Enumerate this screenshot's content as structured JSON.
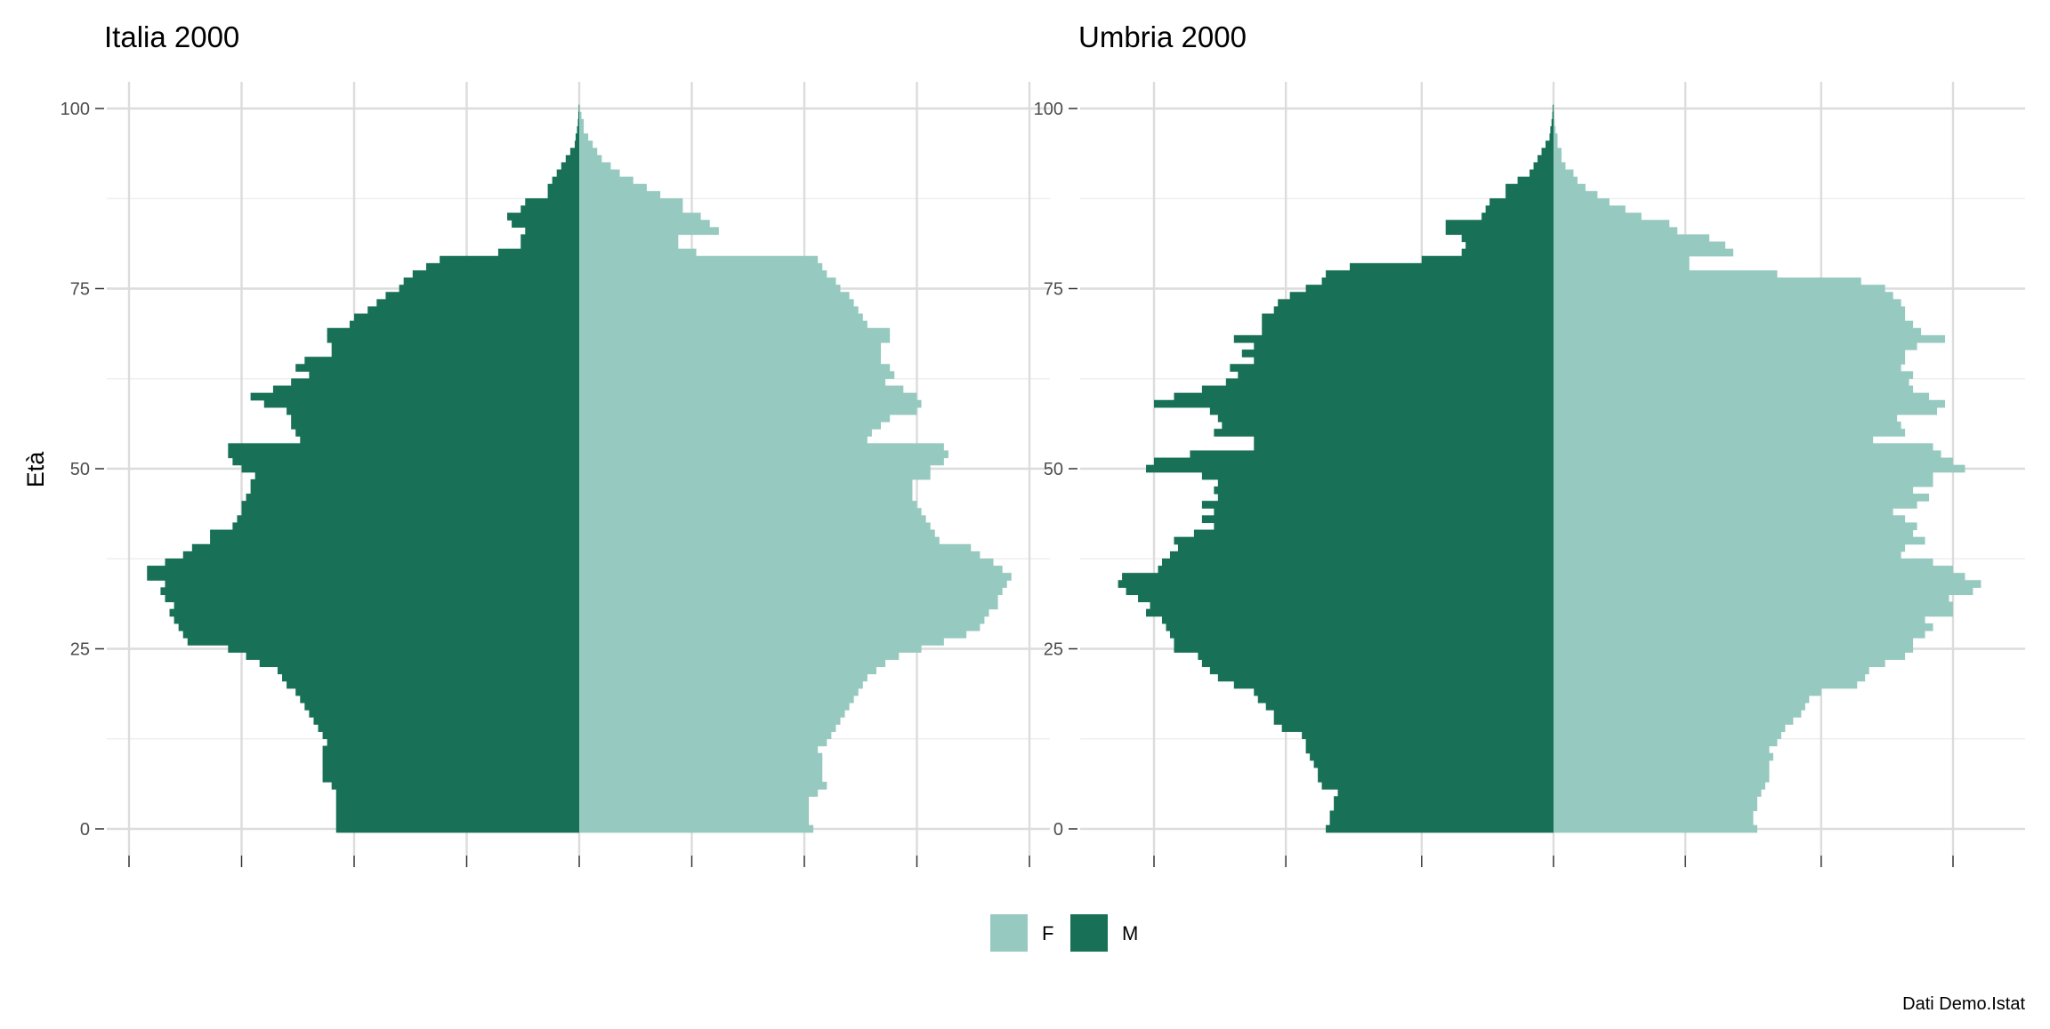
{
  "caption": "Dati Demo.Istat",
  "colors": {
    "F": "#96c9bf",
    "M": "#187157"
  },
  "chart_data": [
    {
      "type": "bar",
      "orientation": "horizontal-pyramid",
      "title": "Italia 2000",
      "ylabel": "Età",
      "xlabel": "",
      "ylim": [
        0,
        100
      ],
      "yticks": [
        0,
        25,
        50,
        75,
        100
      ],
      "grid": true,
      "legend": "bottom",
      "x_tick_labels": [],
      "x_gridlines_relative": [
        -1.0,
        -0.75,
        -0.5,
        -0.25,
        0,
        0.25,
        0.5,
        0.75,
        1.0
      ],
      "ages": [
        0,
        1,
        2,
        3,
        4,
        5,
        6,
        7,
        8,
        9,
        10,
        11,
        12,
        13,
        14,
        15,
        16,
        17,
        18,
        19,
        20,
        21,
        22,
        23,
        24,
        25,
        26,
        27,
        28,
        29,
        30,
        31,
        32,
        33,
        34,
        35,
        36,
        37,
        38,
        39,
        40,
        41,
        42,
        43,
        44,
        45,
        46,
        47,
        48,
        49,
        50,
        51,
        52,
        53,
        54,
        55,
        56,
        57,
        58,
        59,
        60,
        61,
        62,
        63,
        64,
        65,
        66,
        67,
        68,
        69,
        70,
        71,
        72,
        73,
        74,
        75,
        76,
        77,
        78,
        79,
        80,
        81,
        82,
        83,
        84,
        85,
        86,
        87,
        88,
        89,
        90,
        91,
        92,
        93,
        94,
        95,
        96,
        97,
        98,
        99,
        100
      ],
      "series": [
        {
          "name": "F",
          "values_relative": [
            0.52,
            0.51,
            0.51,
            0.51,
            0.51,
            0.53,
            0.55,
            0.54,
            0.54,
            0.54,
            0.54,
            0.53,
            0.55,
            0.56,
            0.57,
            0.58,
            0.59,
            0.6,
            0.61,
            0.62,
            0.63,
            0.64,
            0.66,
            0.68,
            0.71,
            0.76,
            0.81,
            0.86,
            0.89,
            0.9,
            0.91,
            0.93,
            0.93,
            0.94,
            0.95,
            0.96,
            0.94,
            0.92,
            0.89,
            0.87,
            0.8,
            0.79,
            0.78,
            0.77,
            0.76,
            0.75,
            0.74,
            0.74,
            0.74,
            0.78,
            0.78,
            0.81,
            0.82,
            0.81,
            0.64,
            0.65,
            0.67,
            0.69,
            0.75,
            0.76,
            0.75,
            0.72,
            0.68,
            0.7,
            0.69,
            0.67,
            0.67,
            0.67,
            0.69,
            0.69,
            0.64,
            0.63,
            0.62,
            0.61,
            0.6,
            0.58,
            0.57,
            0.55,
            0.54,
            0.53,
            0.26,
            0.22,
            0.22,
            0.31,
            0.29,
            0.27,
            0.23,
            0.23,
            0.18,
            0.15,
            0.12,
            0.09,
            0.07,
            0.05,
            0.04,
            0.03,
            0.02,
            0.01,
            0.01,
            0.005,
            0.002
          ]
        },
        {
          "name": "M",
          "values_relative": [
            0.54,
            0.54,
            0.54,
            0.54,
            0.54,
            0.54,
            0.55,
            0.57,
            0.57,
            0.57,
            0.57,
            0.57,
            0.56,
            0.57,
            0.58,
            0.59,
            0.6,
            0.61,
            0.62,
            0.63,
            0.65,
            0.66,
            0.67,
            0.71,
            0.74,
            0.78,
            0.87,
            0.88,
            0.89,
            0.9,
            0.91,
            0.9,
            0.92,
            0.93,
            0.92,
            0.96,
            0.96,
            0.92,
            0.88,
            0.86,
            0.82,
            0.82,
            0.77,
            0.76,
            0.75,
            0.75,
            0.74,
            0.73,
            0.73,
            0.72,
            0.75,
            0.77,
            0.78,
            0.78,
            0.62,
            0.63,
            0.64,
            0.64,
            0.65,
            0.7,
            0.73,
            0.68,
            0.64,
            0.6,
            0.63,
            0.61,
            0.55,
            0.55,
            0.56,
            0.56,
            0.51,
            0.5,
            0.47,
            0.45,
            0.43,
            0.4,
            0.39,
            0.37,
            0.34,
            0.31,
            0.18,
            0.13,
            0.13,
            0.12,
            0.15,
            0.16,
            0.13,
            0.12,
            0.07,
            0.07,
            0.06,
            0.05,
            0.04,
            0.03,
            0.02,
            0.01,
            0.008,
            0.005,
            0.003,
            0.002,
            0.001
          ]
        }
      ]
    },
    {
      "type": "bar",
      "orientation": "horizontal-pyramid",
      "title": "Umbria 2000",
      "ylabel": "",
      "xlabel": "",
      "ylim": [
        0,
        100
      ],
      "yticks": [
        0,
        25,
        50,
        75,
        100
      ],
      "grid": true,
      "legend": "bottom",
      "x_tick_labels": [],
      "x_gridlines_relative": [
        -1.0,
        -0.67,
        -0.33,
        0,
        0.33,
        0.67,
        1.0
      ],
      "ages": [
        0,
        1,
        2,
        3,
        4,
        5,
        6,
        7,
        8,
        9,
        10,
        11,
        12,
        13,
        14,
        15,
        16,
        17,
        18,
        19,
        20,
        21,
        22,
        23,
        24,
        25,
        26,
        27,
        28,
        29,
        30,
        31,
        32,
        33,
        34,
        35,
        36,
        37,
        38,
        39,
        40,
        41,
        42,
        43,
        44,
        45,
        46,
        47,
        48,
        49,
        50,
        51,
        52,
        53,
        54,
        55,
        56,
        57,
        58,
        59,
        60,
        61,
        62,
        63,
        64,
        65,
        66,
        67,
        68,
        69,
        70,
        71,
        72,
        73,
        74,
        75,
        76,
        77,
        78,
        79,
        80,
        81,
        82,
        83,
        84,
        85,
        86,
        87,
        88,
        89,
        90,
        91,
        92,
        93,
        94,
        95,
        96,
        97,
        98,
        99,
        100
      ],
      "series": [
        {
          "name": "F",
          "values_relative": [
            0.51,
            0.5,
            0.5,
            0.51,
            0.51,
            0.52,
            0.53,
            0.54,
            0.54,
            0.54,
            0.55,
            0.54,
            0.56,
            0.57,
            0.58,
            0.6,
            0.62,
            0.63,
            0.64,
            0.67,
            0.76,
            0.78,
            0.79,
            0.83,
            0.88,
            0.9,
            0.9,
            0.93,
            0.95,
            0.93,
            1.0,
            1.0,
            0.99,
            1.05,
            1.07,
            1.03,
            1.0,
            0.95,
            0.87,
            0.88,
            0.93,
            0.9,
            0.91,
            0.88,
            0.85,
            0.91,
            0.94,
            0.9,
            0.95,
            0.95,
            1.03,
            1.0,
            0.97,
            0.95,
            0.8,
            0.88,
            0.87,
            0.86,
            0.96,
            0.98,
            0.94,
            0.9,
            0.89,
            0.9,
            0.87,
            0.88,
            0.88,
            0.91,
            0.98,
            0.92,
            0.9,
            0.88,
            0.88,
            0.87,
            0.85,
            0.83,
            0.77,
            0.56,
            0.34,
            0.34,
            0.45,
            0.43,
            0.39,
            0.31,
            0.29,
            0.22,
            0.18,
            0.14,
            0.11,
            0.08,
            0.06,
            0.05,
            0.03,
            0.02,
            0.02,
            0.01,
            0.01,
            0.005,
            0.003,
            0.002,
            0.001
          ]
        },
        {
          "name": "M",
          "values_relative": [
            0.57,
            0.56,
            0.56,
            0.55,
            0.55,
            0.54,
            0.58,
            0.59,
            0.59,
            0.6,
            0.61,
            0.62,
            0.62,
            0.63,
            0.68,
            0.7,
            0.7,
            0.72,
            0.74,
            0.75,
            0.8,
            0.84,
            0.86,
            0.88,
            0.89,
            0.95,
            0.95,
            0.96,
            0.97,
            0.98,
            1.02,
            1.01,
            1.04,
            1.07,
            1.09,
            1.08,
            0.99,
            0.98,
            0.96,
            0.94,
            0.95,
            0.9,
            0.85,
            0.88,
            0.85,
            0.88,
            0.84,
            0.85,
            0.84,
            0.88,
            1.02,
            1.0,
            0.91,
            0.75,
            0.75,
            0.85,
            0.83,
            0.84,
            0.86,
            1.0,
            0.95,
            0.88,
            0.82,
            0.79,
            0.81,
            0.75,
            0.78,
            0.75,
            0.8,
            0.73,
            0.73,
            0.73,
            0.7,
            0.69,
            0.66,
            0.62,
            0.58,
            0.57,
            0.51,
            0.33,
            0.23,
            0.22,
            0.23,
            0.27,
            0.27,
            0.18,
            0.17,
            0.16,
            0.12,
            0.12,
            0.09,
            0.06,
            0.05,
            0.04,
            0.03,
            0.02,
            0.01,
            0.008,
            0.005,
            0.003,
            0.002
          ]
        }
      ]
    }
  ]
}
